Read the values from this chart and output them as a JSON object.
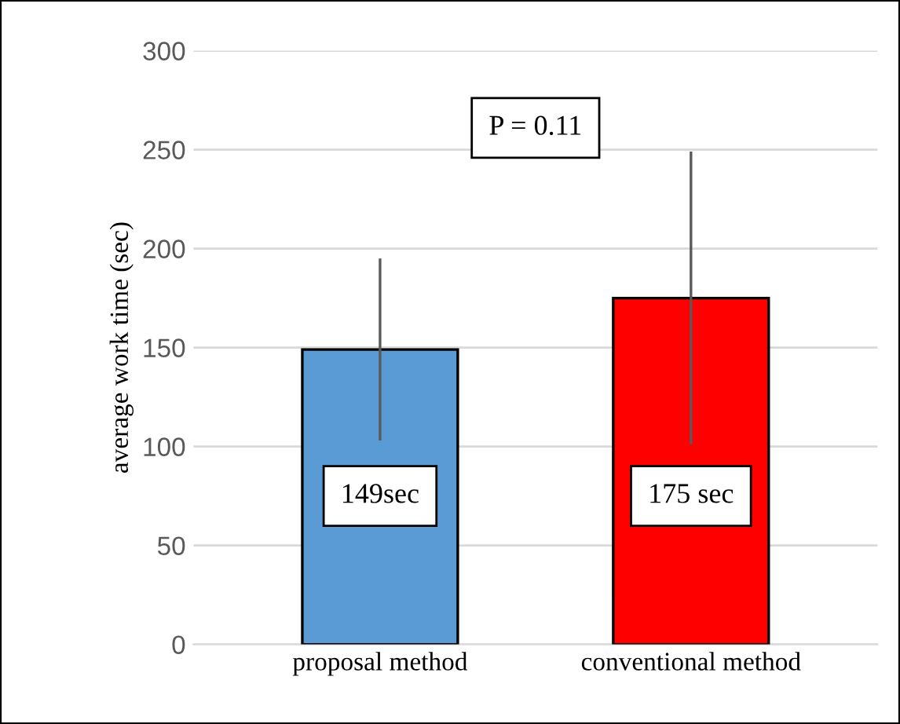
{
  "chart_data": {
    "type": "bar",
    "ylabel": "average work time (sec)",
    "categories": [
      "proposal method",
      "conventional method"
    ],
    "values": [
      149,
      175
    ],
    "colors": [
      "#5b9bd5",
      "#ff0000"
    ],
    "errors": [
      46,
      74
    ],
    "value_labels": [
      "149sec",
      "175 sec"
    ],
    "annotations": [
      "P = 0.11"
    ],
    "ylim": [
      0,
      300
    ],
    "yticks": [
      0,
      50,
      100,
      150,
      200,
      250,
      300
    ],
    "grid": "y"
  }
}
